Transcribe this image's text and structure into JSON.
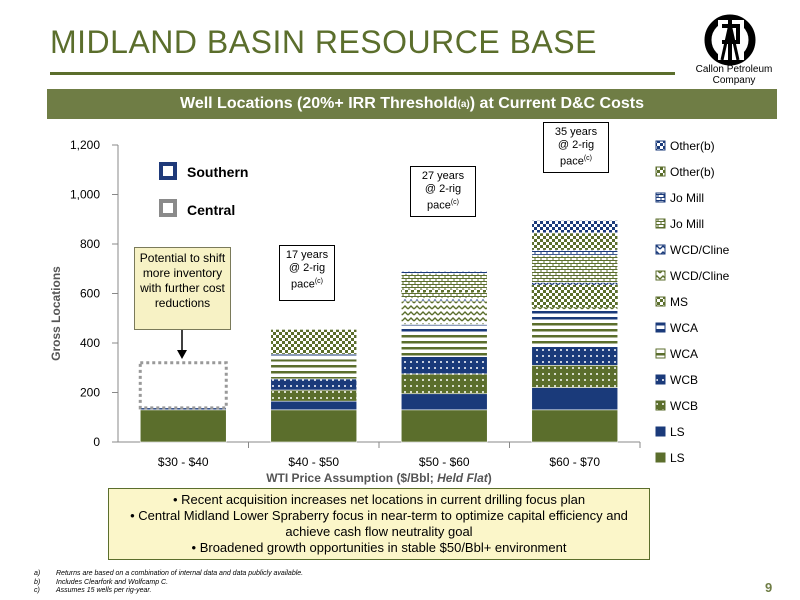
{
  "slide": {
    "title": "MIDLAND BASIN RESOURCE BASE",
    "logo_text": "Callon Petroleum Company",
    "banner_text": "Well Locations (20%+ IRR Threshold",
    "banner_sup": "(a)",
    "banner_suffix": ") at Current D&C Costs",
    "page_number": "9"
  },
  "key": {
    "southern": {
      "label": "Southern",
      "color": "#1f3a7a"
    },
    "central": {
      "label": "Central",
      "color": "#8a8a8a"
    }
  },
  "notes": {
    "potential": "Potential to shift more inventory with further cost reductions",
    "pace": [
      {
        "lines": [
          "17 years",
          "@ 2-rig",
          "pace"
        ],
        "sup": "(c)"
      },
      {
        "lines": [
          "27 years",
          "@ 2-rig",
          "pace"
        ],
        "sup": "(c)"
      },
      {
        "lines": [
          "35 years",
          "@ 2-rig",
          "pace"
        ],
        "sup": "(c)"
      }
    ]
  },
  "bullets": [
    "Recent acquisition increases net locations in current drilling focus plan",
    "Central Midland Lower Spraberry focus in near-term to optimize capital efficiency and achieve cash flow neutrality goal",
    "Broadened growth opportunities in stable $50/Bbl+ environment"
  ],
  "footnotes": [
    {
      "mark": "a)",
      "text": "Returns are based on a combination of internal data and data publicly available."
    },
    {
      "mark": "b)",
      "text": "Includes Clearfork and Wolfcamp C."
    },
    {
      "mark": "c)",
      "text": "Assumes 15 wells per rig-year."
    }
  ],
  "chart_data": {
    "type": "bar",
    "stacked": true,
    "categories": [
      "$30 - $40",
      "$40 - $50",
      "$50 - $60",
      "$60 - $70"
    ],
    "xlabel": "WTI Price Assumption ($/Bbl;",
    "xlabel_italic": "Held Flat",
    "xlabel_suffix": ")",
    "ylabel": "Gross Locations",
    "ylim": [
      0,
      1200
    ],
    "yticks": [
      "0",
      "200",
      "400",
      "600",
      "800",
      "1,000",
      "1,200"
    ],
    "ytick_values": [
      0,
      200,
      400,
      600,
      800,
      1000,
      1200
    ],
    "legend_position": "right",
    "series": [
      {
        "name": "LS",
        "pattern": "solid",
        "color": "#5b6e2c",
        "values": [
          130,
          130,
          130,
          130
        ]
      },
      {
        "name": "LS",
        "pattern": "solid",
        "color": "#1a3a7a",
        "values": [
          8,
          35,
          65,
          90
        ]
      },
      {
        "name": "WCB",
        "pattern": "dots",
        "color": "#5b6e2c",
        "values": [
          0,
          45,
          80,
          90
        ]
      },
      {
        "name": "WCB",
        "pattern": "dots",
        "color": "#1a3a7a",
        "values": [
          0,
          45,
          70,
          75
        ]
      },
      {
        "name": "WCA",
        "pattern": "hlines",
        "color": "#5b6e2c",
        "values": [
          0,
          80,
          90,
          100
        ]
      },
      {
        "name": "WCA",
        "pattern": "hlines",
        "color": "#1a3a7a",
        "values": [
          0,
          20,
          40,
          50
        ]
      },
      {
        "name": "MS",
        "pattern": "checker",
        "color": "#5b6e2c",
        "values": [
          0,
          0,
          0,
          0
        ]
      },
      {
        "name": "WCD/Cline",
        "pattern": "zigzag",
        "color": "#5b6e2c",
        "values": [
          0,
          0,
          95,
          90
        ]
      },
      {
        "name": "WCD/Cline",
        "pattern": "zigzag",
        "color": "#1a3a7a",
        "values": [
          0,
          0,
          10,
          20
        ]
      },
      {
        "name": "Jo Mill",
        "pattern": "bricks",
        "color": "#5b6e2c",
        "values": [
          0,
          0,
          100,
          110
        ]
      },
      {
        "name": "Jo Mill",
        "pattern": "bricks",
        "color": "#1a3a7a",
        "values": [
          0,
          0,
          10,
          20
        ]
      },
      {
        "name": "Other(b)",
        "pattern": "checker",
        "color": "#5b6e2c",
        "values": [
          0,
          100,
          0,
          70
        ]
      },
      {
        "name": "Other(b)",
        "pattern": "checker",
        "color": "#1a3a7a",
        "values": [
          0,
          0,
          0,
          50
        ]
      }
    ],
    "extra_bars": [
      {
        "category": "$50 - $60",
        "series": "MS",
        "value": 10,
        "base": 605
      },
      {
        "category": "$60 - $70",
        "series": "MS",
        "value": 90,
        "base": 545
      }
    ],
    "potential_box": {
      "category": "$30 - $40",
      "from": 138,
      "to": 320
    }
  }
}
